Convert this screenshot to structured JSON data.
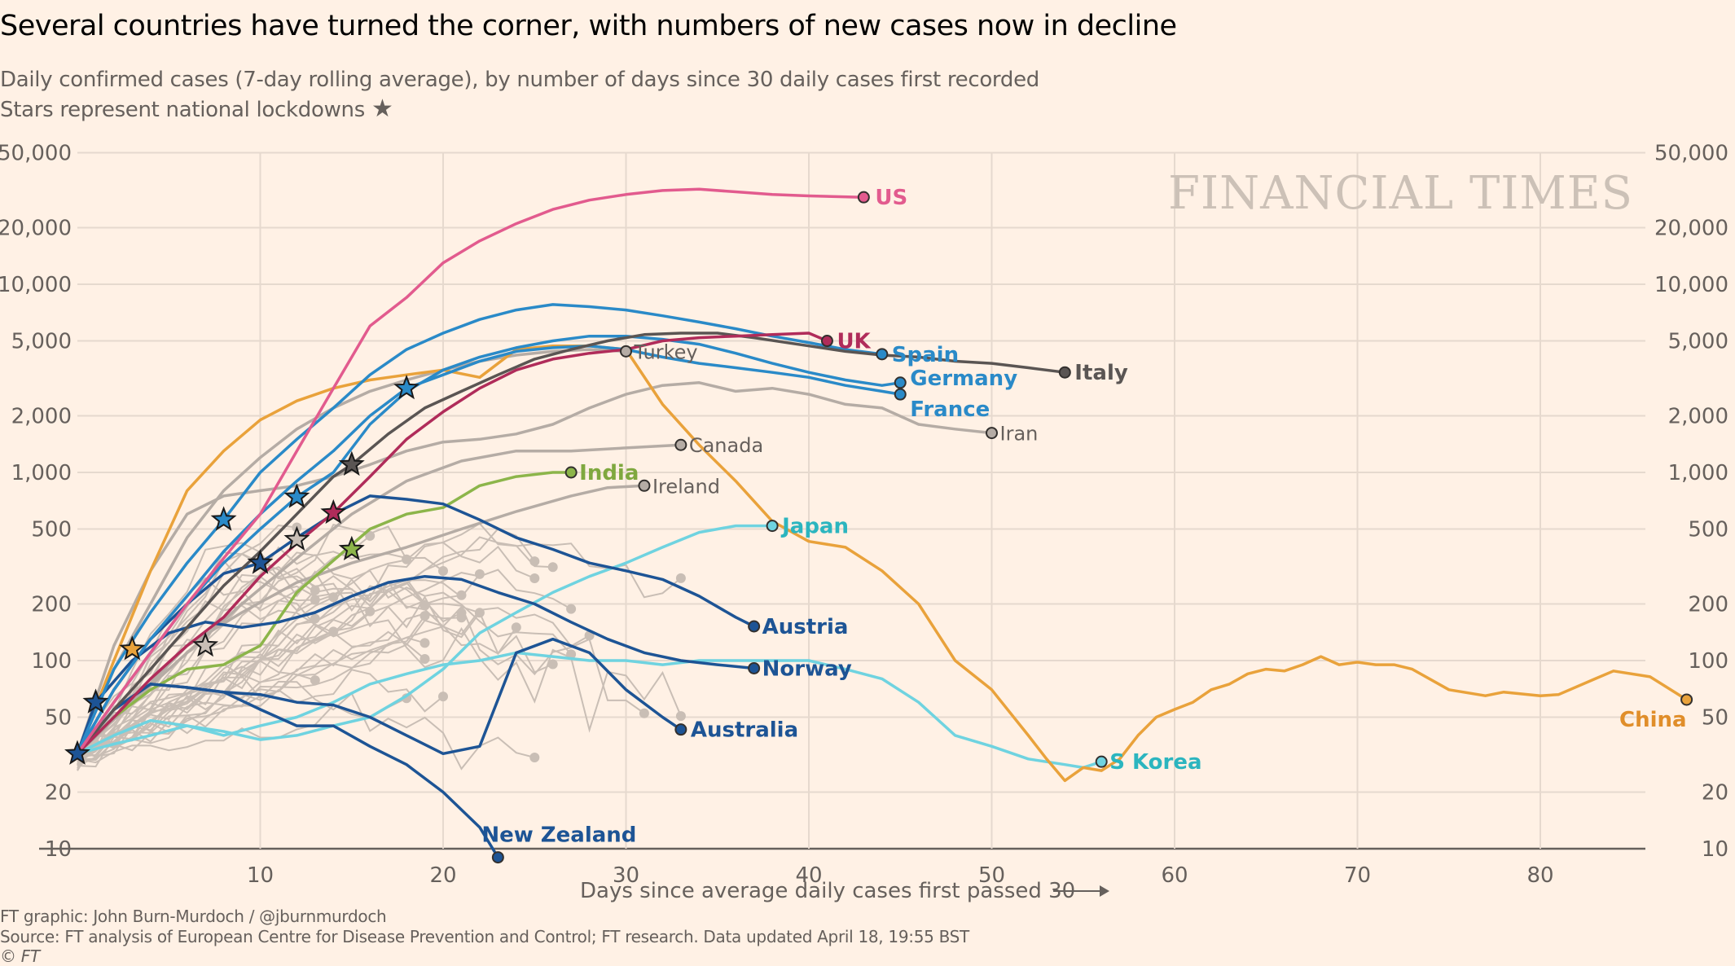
{
  "header": {
    "title": "Several countries have turned the corner, with numbers of new cases now in decline",
    "subtitle_line1": "Daily confirmed cases (7-day rolling average), by number of days since 30 daily cases first recorded",
    "subtitle_line2": "Stars represent national lockdowns",
    "star_glyph": "★"
  },
  "footer": {
    "credit": "FT graphic: John Burn-Murdoch / @jburnmurdoch",
    "source": "Source: FT analysis of European Centre for Disease Prevention and Control; FT research. Data updated April 18, 19:55 BST",
    "copyright": "© FT"
  },
  "chart_data": {
    "type": "line",
    "title": "Several countries have turned the corner, with numbers of new cases now in decline",
    "subtitle": "Daily confirmed cases (7-day rolling average), by number of days since 30 daily cases first recorded",
    "xlabel": "Days since average daily cases first passed 30",
    "ylabel": "",
    "yscale": "log",
    "xlim": [
      0,
      88
    ],
    "ylim": [
      10,
      50000
    ],
    "x_ticks": [
      10,
      20,
      30,
      40,
      50,
      60,
      70,
      80
    ],
    "y_ticks": [
      10,
      20,
      50,
      100,
      200,
      500,
      1000,
      2000,
      5000,
      10000,
      20000,
      50000
    ],
    "y_tick_labels": [
      "10",
      "20",
      "50",
      "100",
      "200",
      "500",
      "1,000",
      "2,000",
      "5,000",
      "10,000",
      "20,000",
      "50,000"
    ],
    "grid": true,
    "watermark": "FINANCIAL TIMES",
    "series": [
      {
        "name": "US",
        "color": "#e25b8e",
        "highlight": true,
        "x": [
          0,
          2,
          4,
          6,
          8,
          10,
          12,
          14,
          16,
          18,
          20,
          22,
          24,
          26,
          28,
          30,
          32,
          34,
          36,
          38,
          40,
          43
        ],
        "y": [
          32,
          60,
          110,
          200,
          350,
          600,
          1300,
          2800,
          6000,
          8500,
          13000,
          17000,
          21000,
          25000,
          28000,
          30000,
          31500,
          32000,
          31000,
          30000,
          29500,
          29000
        ]
      },
      {
        "name": "UK",
        "color": "#b02c5a",
        "highlight": true,
        "lockdown_day": 14,
        "lockdown_value": 610,
        "x": [
          0,
          2,
          4,
          6,
          8,
          10,
          12,
          14,
          16,
          18,
          20,
          22,
          24,
          26,
          28,
          30,
          32,
          34,
          36,
          38,
          40,
          41
        ],
        "y": [
          32,
          50,
          80,
          120,
          170,
          280,
          420,
          610,
          950,
          1500,
          2100,
          2800,
          3500,
          4000,
          4300,
          4500,
          5000,
          5200,
          5300,
          5400,
          5500,
          5000
        ]
      },
      {
        "name": "Spain",
        "color": "#2a8ac8",
        "highlight": true,
        "lockdown_day": 8,
        "lockdown_value": 560,
        "x": [
          0,
          2,
          4,
          6,
          8,
          10,
          12,
          14,
          16,
          18,
          20,
          22,
          24,
          26,
          28,
          30,
          32,
          34,
          36,
          38,
          40,
          42,
          44
        ],
        "y": [
          32,
          90,
          180,
          330,
          560,
          1000,
          1500,
          2200,
          3300,
          4500,
          5500,
          6500,
          7300,
          7800,
          7600,
          7300,
          6800,
          6300,
          5800,
          5300,
          4900,
          4500,
          4250
        ]
      },
      {
        "name": "Italy",
        "color": "#5a5553",
        "highlight": true,
        "lockdown_day": 15,
        "lockdown_value": 1100,
        "x": [
          0,
          2,
          4,
          6,
          8,
          10,
          12,
          14,
          15,
          17,
          19,
          21,
          23,
          25,
          27,
          29,
          31,
          33,
          35,
          37,
          40,
          42,
          44,
          46,
          48,
          50,
          52,
          54
        ],
        "y": [
          32,
          55,
          90,
          150,
          250,
          380,
          600,
          950,
          1100,
          1600,
          2200,
          2700,
          3300,
          4000,
          4500,
          5000,
          5400,
          5500,
          5500,
          5200,
          4700,
          4400,
          4200,
          4100,
          3900,
          3800,
          3600,
          3400
        ]
      },
      {
        "name": "Germany",
        "color": "#2a8ac8",
        "highlight": true,
        "lockdown_day": 12,
        "lockdown_value": 740,
        "x": [
          0,
          2,
          4,
          6,
          8,
          10,
          12,
          14,
          16,
          18,
          20,
          22,
          24,
          26,
          28,
          30,
          32,
          34,
          36,
          38,
          40,
          42,
          44,
          45
        ],
        "y": [
          32,
          60,
          110,
          200,
          330,
          500,
          740,
          1000,
          1800,
          2700,
          3500,
          4100,
          4600,
          5000,
          5300,
          5300,
          5100,
          4800,
          4300,
          3800,
          3400,
          3100,
          2900,
          3000
        ]
      },
      {
        "name": "France",
        "color": "#2a8ac8",
        "highlight": true,
        "lockdown_day": 18,
        "lockdown_value": 2800,
        "x": [
          0,
          2,
          4,
          6,
          8,
          10,
          12,
          14,
          16,
          18,
          20,
          22,
          24,
          26,
          28,
          30,
          32,
          34,
          36,
          38,
          40,
          42,
          44,
          45
        ],
        "y": [
          32,
          70,
          130,
          220,
          380,
          600,
          900,
          1300,
          2000,
          2800,
          3300,
          3900,
          4400,
          4600,
          4700,
          4500,
          4100,
          3800,
          3600,
          3400,
          3200,
          2900,
          2700,
          2600
        ]
      },
      {
        "name": "Iran",
        "color": "#b5aca5",
        "highlight": false,
        "x": [
          0,
          2,
          4,
          6,
          8,
          10,
          12,
          14,
          16,
          18,
          20,
          22,
          24,
          26,
          28,
          30,
          32,
          34,
          36,
          38,
          40,
          42,
          44,
          46,
          48,
          50
        ],
        "y": [
          32,
          120,
          300,
          600,
          750,
          800,
          850,
          950,
          1100,
          1300,
          1450,
          1500,
          1600,
          1800,
          2200,
          2600,
          2900,
          3000,
          2700,
          2800,
          2600,
          2300,
          2200,
          1800,
          1700,
          1620
        ]
      },
      {
        "name": "Turkey",
        "color": "#b5aca5",
        "highlight": false,
        "x": [
          0,
          2,
          4,
          6,
          8,
          10,
          12,
          14,
          16,
          18,
          20,
          22,
          24,
          26,
          28,
          30
        ],
        "y": [
          32,
          90,
          200,
          450,
          800,
          1200,
          1700,
          2200,
          2700,
          3100,
          3500,
          3900,
          4200,
          4400,
          4500,
          4400
        ]
      },
      {
        "name": "Canada",
        "color": "#b5aca5",
        "highlight": false,
        "x": [
          0,
          3,
          6,
          9,
          12,
          15,
          18,
          21,
          24,
          27,
          30,
          33
        ],
        "y": [
          32,
          60,
          110,
          200,
          350,
          600,
          900,
          1150,
          1300,
          1300,
          1350,
          1400
        ]
      },
      {
        "name": "India",
        "color": "#8cb54a",
        "highlight": true,
        "lockdown_day": 15,
        "lockdown_value": 390,
        "x": [
          0,
          2,
          4,
          6,
          8,
          10,
          12,
          14,
          16,
          18,
          20,
          22,
          24,
          26,
          27
        ],
        "y": [
          32,
          50,
          70,
          90,
          95,
          120,
          230,
          340,
          500,
          600,
          650,
          850,
          950,
          1000,
          1000
        ]
      },
      {
        "name": "Ireland",
        "color": "#b5aca5",
        "highlight": false,
        "x": [
          0,
          3,
          6,
          9,
          12,
          15,
          18,
          21,
          24,
          27,
          29,
          31
        ],
        "y": [
          32,
          60,
          120,
          180,
          260,
          330,
          400,
          500,
          620,
          750,
          830,
          850
        ]
      },
      {
        "name": "Japan",
        "color": "#6fd3e0",
        "highlight": true,
        "x": [
          0,
          2,
          4,
          6,
          8,
          10,
          12,
          14,
          16,
          18,
          20,
          22,
          24,
          26,
          28,
          30,
          32,
          34,
          36,
          38
        ],
        "y": [
          32,
          36,
          40,
          45,
          42,
          38,
          40,
          45,
          50,
          65,
          90,
          140,
          180,
          230,
          280,
          330,
          400,
          480,
          520,
          520
        ]
      },
      {
        "name": "Austria",
        "color": "#1d5495",
        "highlight": true,
        "lockdown_day": 10,
        "lockdown_value": 330,
        "x": [
          0,
          2,
          4,
          6,
          8,
          10,
          12,
          14,
          16,
          18,
          20,
          22,
          24,
          26,
          28,
          30,
          32,
          34,
          36,
          37
        ],
        "y": [
          32,
          70,
          130,
          200,
          290,
          330,
          450,
          600,
          750,
          720,
          680,
          560,
          450,
          390,
          330,
          300,
          270,
          220,
          170,
          152
        ]
      },
      {
        "name": "Norway",
        "color": "#1d5495",
        "highlight": true,
        "lockdown_day": 1,
        "lockdown_value": 60,
        "x": [
          0,
          1,
          3,
          5,
          7,
          9,
          11,
          13,
          15,
          17,
          19,
          21,
          23,
          25,
          27,
          29,
          31,
          33,
          35,
          37
        ],
        "y": [
          32,
          60,
          100,
          140,
          160,
          150,
          160,
          180,
          220,
          260,
          280,
          270,
          230,
          200,
          160,
          130,
          110,
          100,
          95,
          91
        ]
      },
      {
        "name": "Australia",
        "color": "#1d5495",
        "highlight": true,
        "lockdown_day": 0,
        "lockdown_value": 32,
        "x": [
          0,
          2,
          4,
          6,
          8,
          10,
          12,
          14,
          16,
          18,
          20,
          22,
          24,
          26,
          28,
          30,
          32,
          33
        ],
        "y": [
          32,
          55,
          75,
          72,
          68,
          66,
          60,
          58,
          50,
          40,
          32,
          35,
          110,
          130,
          110,
          70,
          50,
          43
        ]
      },
      {
        "name": "New Zealand",
        "color": "#1d5495",
        "highlight": true,
        "x": [
          0,
          2,
          4,
          6,
          8,
          10,
          12,
          14,
          16,
          18,
          20,
          22,
          23
        ],
        "y": [
          32,
          55,
          75,
          72,
          68,
          55,
          45,
          45,
          35,
          28,
          20,
          13,
          9
        ]
      },
      {
        "name": "S Korea",
        "color": "#6fd3e0",
        "highlight": true,
        "x": [
          0,
          2,
          4,
          6,
          8,
          10,
          12,
          14,
          16,
          18,
          20,
          22,
          24,
          26,
          28,
          30,
          32,
          34,
          36,
          38,
          40,
          42,
          44,
          46,
          48,
          50,
          52,
          54,
          55,
          56
        ],
        "y": [
          32,
          40,
          48,
          45,
          40,
          45,
          50,
          60,
          75,
          85,
          95,
          100,
          110,
          105,
          100,
          100,
          95,
          100,
          100,
          100,
          100,
          90,
          80,
          60,
          40,
          35,
          30,
          28,
          27,
          29
        ]
      },
      {
        "name": "China",
        "color": "#e9a23b",
        "highlight": true,
        "lockdown_day": 3,
        "lockdown_value": 115,
        "x": [
          0,
          2,
          4,
          6,
          8,
          10,
          12,
          14,
          16,
          18,
          20,
          22,
          24,
          26,
          28,
          30,
          32,
          34,
          36,
          38,
          40,
          42,
          44,
          46,
          48,
          50,
          52,
          53,
          54,
          55,
          56,
          57,
          58,
          59,
          60,
          61,
          62,
          63,
          64,
          65,
          66,
          67,
          68,
          69,
          70,
          71,
          72,
          73,
          75,
          77,
          78,
          80,
          81,
          83,
          84,
          86,
          88
        ],
        "y": [
          32,
          100,
          300,
          800,
          1300,
          1900,
          2400,
          2800,
          3100,
          3300,
          3500,
          3200,
          4500,
          4700,
          4700,
          4500,
          2300,
          1400,
          900,
          550,
          430,
          400,
          300,
          200,
          100,
          70,
          40,
          30,
          23,
          27,
          26,
          30,
          40,
          50,
          55,
          60,
          70,
          75,
          85,
          90,
          88,
          95,
          105,
          95,
          98,
          95,
          95,
          90,
          70,
          65,
          68,
          65,
          66,
          80,
          88,
          82,
          62
        ]
      }
    ],
    "minor_series_note": "Many additional unlabelled grey country lines"
  },
  "labels": {
    "US": "US",
    "UK": "UK",
    "Spain": "Spain",
    "Italy": "Italy",
    "Germany": "Germany",
    "France": "France",
    "Iran": "Iran",
    "Turkey": "Turkey",
    "Canada": "Canada",
    "India": "India",
    "Ireland": "Ireland",
    "Japan": "Japan",
    "Austria": "Austria",
    "Norway": "Norway",
    "Australia": "Australia",
    "New Zealand": "New Zealand",
    "S Korea": "S Korea",
    "China": "China"
  }
}
